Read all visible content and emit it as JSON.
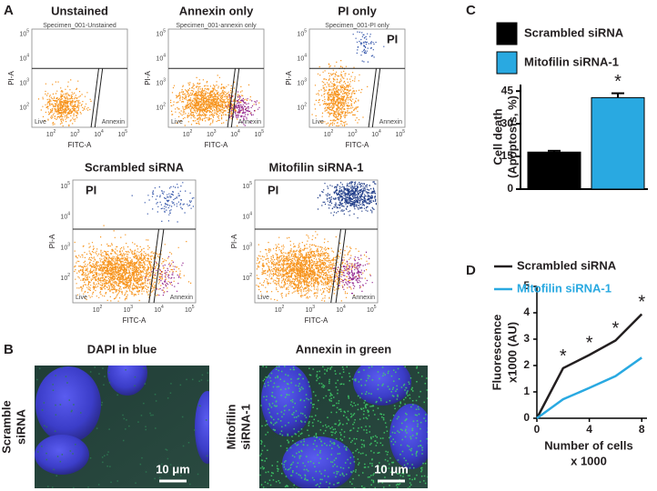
{
  "panel_a": {
    "label": "A",
    "x_label": "FITC-A",
    "y_label": "PI-A",
    "live_label": "Live",
    "annexin_label": "Annexin",
    "tick_base": "10",
    "tick_exponents": [
      "2",
      "3",
      "4",
      "5"
    ],
    "plots": [
      {
        "title": "Unstained",
        "specimen": "Specimen_001-Unstained"
      },
      {
        "title": "Annexin only",
        "specimen": "Specimen_001-annexin only"
      },
      {
        "title": "PI only",
        "specimen": "Specimen_001-PI only",
        "pi_label": "PI"
      },
      {
        "title": "Scrambled siRNA",
        "pi_label": "PI"
      },
      {
        "title": "Mitofilin siRNA-1",
        "pi_label": "PI"
      }
    ]
  },
  "panel_b": {
    "label": "B",
    "columns": [
      "DAPI in blue",
      "Annexin in green"
    ],
    "rows": [
      [
        "Scramble",
        "siRNA"
      ],
      [
        "Mitofilin",
        "siRNA-1"
      ]
    ],
    "scale_bar": "10 μm"
  },
  "chart_data": [
    {
      "type": "bar",
      "label": "C",
      "ylabel": [
        "Cell death",
        "(Apoptosis, %)"
      ],
      "ylim": [
        0,
        48
      ],
      "yticks": [
        0,
        15,
        30,
        45
      ],
      "series": [
        {
          "name": "Scrambled siRNA",
          "color": "#000000",
          "values": [
            17
          ],
          "errors": [
            0.6
          ]
        },
        {
          "name": "Mitofilin siRNA-1",
          "color": "#29a9e1",
          "values": [
            42
          ],
          "errors": [
            2
          ],
          "annotations": [
            "*"
          ]
        }
      ]
    },
    {
      "type": "line",
      "label": "D",
      "x": [
        0,
        2,
        4,
        6,
        8
      ],
      "xlim": [
        0,
        8.4
      ],
      "xticks": [
        0,
        4,
        8
      ],
      "ylim": [
        0,
        5
      ],
      "yticks": [
        0,
        1,
        2,
        3,
        4,
        5
      ],
      "xlabel": [
        "Number of cells",
        "x 1000"
      ],
      "ylabel": [
        "Fluorescence",
        "x1000 (AU)"
      ],
      "series": [
        {
          "name": "Scrambled siRNA",
          "color": "#231f20",
          "values": [
            0,
            1.9,
            2.4,
            2.95,
            3.95
          ],
          "annotations": [
            null,
            "*",
            "*",
            "*",
            "*"
          ]
        },
        {
          "name": "Mitofilin siRNA-1",
          "color": "#29a9e1",
          "values": [
            0,
            0.72,
            1.15,
            1.6,
            2.3
          ]
        }
      ]
    }
  ]
}
